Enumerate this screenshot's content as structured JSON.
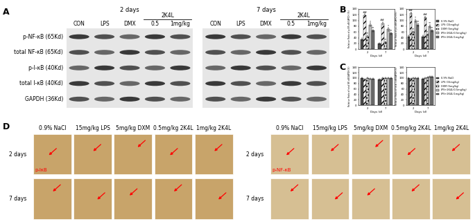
{
  "panel_labels": [
    "A",
    "B",
    "C",
    "D"
  ],
  "blot": {
    "groups": [
      {
        "title": "2 days",
        "lanes": [
          "CON",
          "LPS",
          "DMX",
          "0.5",
          "1mg/kg"
        ],
        "bracket": "2K4L"
      },
      {
        "title": "7 days",
        "lanes": [
          "CON",
          "LPS",
          "DMX",
          "0.5",
          "1mg/kg"
        ],
        "bracket": "2K4L"
      }
    ],
    "rows": [
      "p-NF-κB (65Kd)",
      "total NF-κB (65Kd)",
      "p-I-κB (40Kd)",
      "total I-κB (40Kd)",
      "GAPDH (36Kd)"
    ]
  },
  "chart_data": [
    {
      "type": "bar",
      "y_label": "Relative Ratio of p-NF-κB/GAPDH (%)",
      "x_label": "Days (d)",
      "categories": [
        "2",
        "7"
      ],
      "ylim": [
        0,
        140
      ],
      "yticks": [
        0,
        20,
        40,
        60,
        80,
        100,
        120,
        140
      ],
      "series": [
        {
          "color": "#4d4d4d",
          "values": [
            35,
            20
          ],
          "errors": [
            3,
            2
          ]
        },
        {
          "color": "#f2f2f2",
          "values": [
            118,
            90
          ],
          "errors": [
            5,
            5
          ],
          "annotations": [
            "##",
            "##"
          ]
        },
        {
          "color": "#dcdcdc",
          "values": [
            45,
            25
          ],
          "errors": [
            4,
            3
          ],
          "annotations": [
            "**",
            "**"
          ]
        },
        {
          "color": "#bdbdbd",
          "values": [
            85,
            70
          ],
          "errors": [
            6,
            6
          ],
          "annotations": [
            "*",
            "*"
          ]
        },
        {
          "color": "#707070",
          "values": [
            65,
            55
          ],
          "errors": [
            4,
            4
          ],
          "annotations": [
            "**",
            "**"
          ]
        }
      ]
    },
    {
      "type": "bar",
      "y_label": "Relative Ratio of p-I-κB/GAPDH(%)",
      "x_label": "Days (d)",
      "categories": [
        "2",
        "7"
      ],
      "ylim": [
        0,
        140
      ],
      "yticks": [
        0,
        20,
        40,
        60,
        80,
        100,
        120,
        140
      ],
      "legend": "right",
      "series": [
        {
          "name": "0.9% NaCl",
          "color": "#4d4d4d",
          "values": [
            45,
            45
          ],
          "errors": [
            3,
            3
          ]
        },
        {
          "name": "LPS (15mg/kg)",
          "color": "#f2f2f2",
          "values": [
            125,
            110
          ],
          "errors": [
            4,
            4
          ],
          "annotations": [
            "##",
            "##"
          ]
        },
        {
          "name": "DXM (5mg/kg)",
          "color": "#dcdcdc",
          "values": [
            60,
            50
          ],
          "errors": [
            4,
            3
          ],
          "annotations": [
            "**",
            "**"
          ]
        },
        {
          "name": "LPS+2K4L(0.5mg/kg)",
          "color": "#bdbdbd",
          "values": [
            100,
            80
          ],
          "errors": [
            5,
            5
          ],
          "annotations": [
            "*",
            "**"
          ]
        },
        {
          "name": "LPS+2K4L(1mg/kg)",
          "color": "#707070",
          "values": [
            85,
            65
          ],
          "errors": [
            4,
            4
          ],
          "annotations": [
            "**",
            "**"
          ]
        }
      ]
    },
    {
      "type": "bar",
      "y_label": "Relative Ratio of total NF-κB/GAPDH(%)",
      "x_label": "Days (d)",
      "categories": [
        "2",
        "7"
      ],
      "ylim": [
        0,
        140
      ],
      "yticks": [
        0,
        20,
        40,
        60,
        80,
        100,
        120,
        140
      ],
      "series": [
        {
          "color": "#4d4d4d",
          "values": [
            100,
            95
          ],
          "errors": [
            2,
            2
          ]
        },
        {
          "color": "#f2f2f2",
          "values": [
            95,
            100
          ],
          "errors": [
            2,
            2
          ]
        },
        {
          "color": "#dcdcdc",
          "values": [
            100,
            100
          ],
          "errors": [
            2,
            2
          ]
        },
        {
          "color": "#bdbdbd",
          "values": [
            98,
            100
          ],
          "errors": [
            2,
            2
          ]
        },
        {
          "color": "#707070",
          "values": [
            98,
            100
          ],
          "errors": [
            2,
            2
          ]
        }
      ]
    },
    {
      "type": "bar",
      "y_label": "Relative Ratio of total I-κB/GAPDH(%)",
      "x_label": "Days (d)",
      "categories": [
        "2",
        "7"
      ],
      "ylim": [
        0,
        140
      ],
      "yticks": [
        0,
        20,
        40,
        60,
        80,
        100,
        120,
        140
      ],
      "legend": "right",
      "series": [
        {
          "name": "0.9% NaCl",
          "color": "#4d4d4d",
          "values": [
            100,
            98
          ],
          "errors": [
            2,
            2
          ]
        },
        {
          "name": "LPS (15mg/kg)",
          "color": "#f2f2f2",
          "values": [
            98,
            100
          ],
          "errors": [
            2,
            2
          ]
        },
        {
          "name": "DXM (5mg/kg)",
          "color": "#dcdcdc",
          "values": [
            100,
            102
          ],
          "errors": [
            2,
            2
          ]
        },
        {
          "name": "LPS+2K4L(0.5mg/kg)",
          "color": "#bdbdbd",
          "values": [
            100,
            105
          ],
          "errors": [
            2,
            2
          ]
        },
        {
          "name": "LPS+2K4L(1mg/kg)",
          "color": "#707070",
          "values": [
            100,
            105
          ],
          "errors": [
            2,
            2
          ]
        }
      ]
    }
  ],
  "histology": {
    "groups": [
      {
        "stain": "p-IκB",
        "columns": [
          "0.9% NaCl",
          "15mg/kg LPS",
          "5mg/kg DXM",
          "0.5mg/kg 2K4L",
          "1mg/kg 2K4L"
        ],
        "rows": [
          "2 days",
          "7 days"
        ]
      },
      {
        "stain": "p-NF-κB",
        "columns": [
          "0.9% NaCl",
          "15mg/kg LPS",
          "5mg/kg DXM",
          "0.5mg/kg 2K4L",
          "1mg/kg 2K4L"
        ],
        "rows": [
          "2 days",
          "7 days"
        ]
      }
    ]
  }
}
